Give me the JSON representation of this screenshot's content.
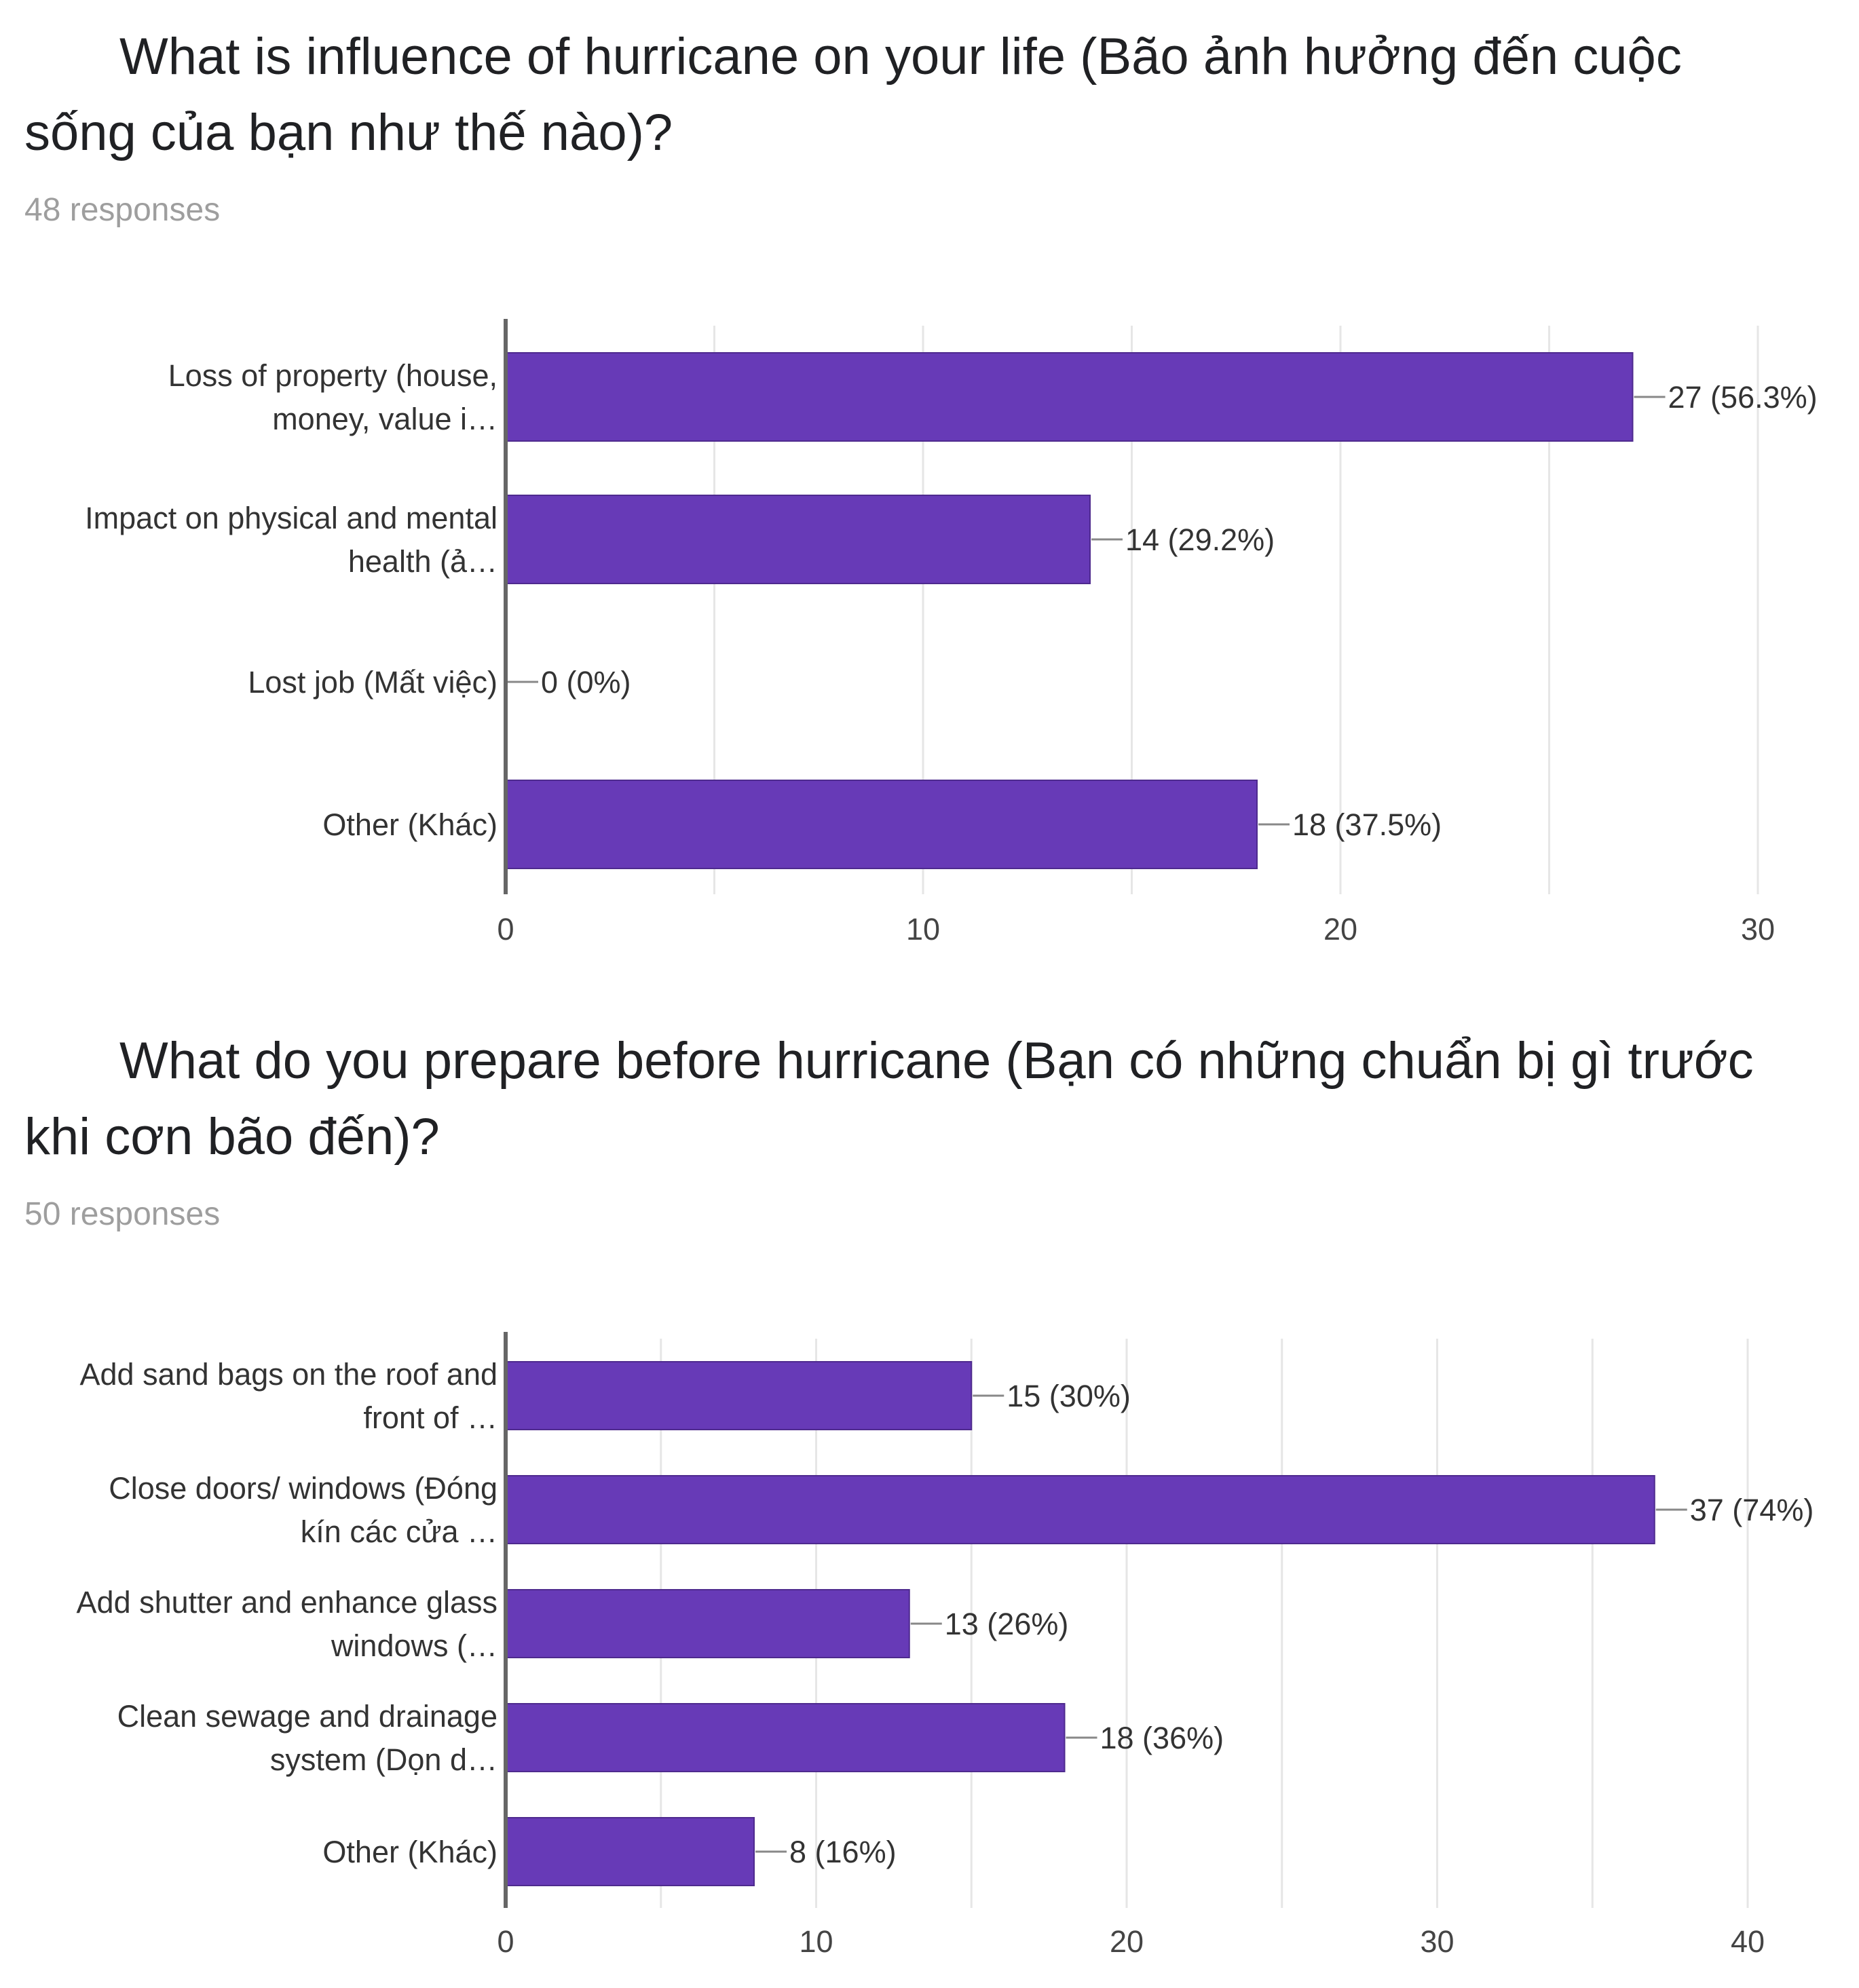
{
  "charts": [
    {
      "title": "What is influence of hurricane on your life (Bão ảnh hưởng đến cuộc sống của bạn như thế nào)?",
      "responses": "48 responses"
    },
    {
      "title": "What do you prepare before hurricane (Bạn có những chuẩn bị gì trước khi cơn bão đến)?",
      "responses": "50 responses"
    }
  ],
  "colors": {
    "bar": "#673ab7",
    "axis": "#666666",
    "grid": "#e6e6e6",
    "leader": "#888888"
  },
  "chart_data": [
    {
      "type": "bar",
      "orientation": "horizontal",
      "title": "What is influence of hurricane on your life (Bão ảnh hưởng đến cuộc sống của bạn như thế nào)?",
      "categories": [
        [
          "Loss of property (house,",
          "money, value i…"
        ],
        [
          "Impact on physical and mental",
          "health (ả…"
        ],
        [
          "Lost job (Mất việc)"
        ],
        [
          "Other (Khác)"
        ]
      ],
      "values": [
        27,
        14,
        0,
        18
      ],
      "value_labels": [
        "27 (56.3%)",
        "14 (29.2%)",
        "0 (0%)",
        "18 (37.5%)"
      ],
      "xlim": [
        0,
        30
      ],
      "xticks": [
        0,
        10,
        20,
        30
      ],
      "grid": true
    },
    {
      "type": "bar",
      "orientation": "horizontal",
      "title": "What do you prepare before hurricane (Bạn có những chuẩn bị gì trước khi cơn bão đến)?",
      "categories": [
        [
          "Add sand bags on the roof and",
          "front of …"
        ],
        [
          "Close doors/ windows (Đóng",
          "kín các cửa …"
        ],
        [
          "Add shutter and enhance glass",
          "windows (…"
        ],
        [
          "Clean sewage and drainage",
          "system (Dọn d…"
        ],
        [
          "Other (Khác)"
        ]
      ],
      "values": [
        15,
        37,
        13,
        18,
        8
      ],
      "value_labels": [
        "15 (30%)",
        "37 (74%)",
        "13 (26%)",
        "18 (36%)",
        "8 (16%)"
      ],
      "xlim": [
        0,
        40
      ],
      "xticks": [
        0,
        10,
        20,
        30,
        40
      ],
      "grid": true
    }
  ]
}
